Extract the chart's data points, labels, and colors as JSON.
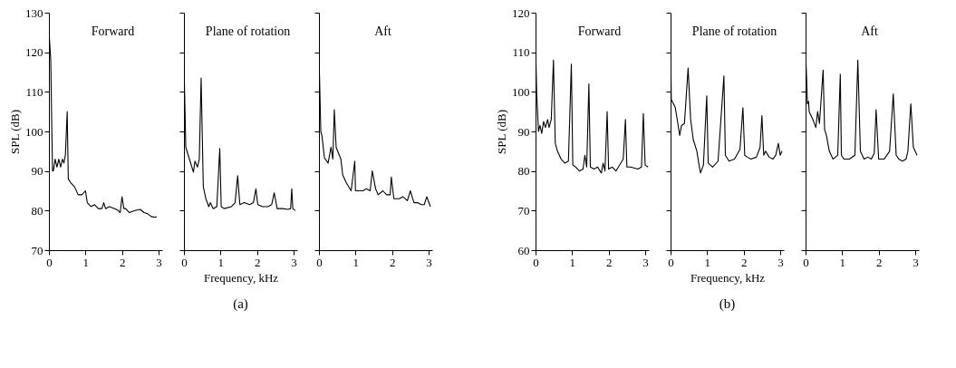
{
  "chart_data": [
    {
      "type": "line",
      "title": "Forward",
      "ylabel": "SPL (dB)",
      "xlim": [
        0,
        3.1
      ],
      "ylim": [
        70,
        130
      ],
      "xticks": [
        0,
        1,
        2,
        3
      ],
      "yticks": [
        70,
        80,
        90,
        100,
        110,
        120,
        130
      ],
      "x": [
        0,
        0.01,
        0.05,
        0.08,
        0.1,
        0.12,
        0.17,
        0.22,
        0.27,
        0.32,
        0.37,
        0.41,
        0.45,
        0.5,
        0.53,
        0.6,
        0.7,
        0.8,
        0.9,
        1.0,
        1.05,
        1.15,
        1.25,
        1.35,
        1.45,
        1.5,
        1.55,
        1.65,
        1.8,
        1.9,
        1.95,
        2.0,
        2.05,
        2.1,
        2.2,
        2.35,
        2.5,
        2.6,
        2.7,
        2.8,
        2.9,
        2.95
      ],
      "series": [
        {
          "color": "#000000",
          "values": [
            90,
            124,
            118,
            100,
            90,
            90,
            93,
            91,
            93,
            91,
            93,
            92,
            94,
            105,
            88,
            87,
            86,
            84,
            84,
            85,
            82,
            81,
            81.5,
            80.5,
            80.5,
            82,
            80.5,
            81,
            80.5,
            80,
            79.5,
            83.5,
            80.5,
            80.5,
            79.5,
            80,
            80.3,
            79.5,
            79.2,
            78.5,
            78.3,
            78.5
          ]
        }
      ]
    },
    {
      "type": "line",
      "title": "Plane of rotation",
      "xlabel": "Frequency, kHz",
      "annotations": [
        "(a)"
      ],
      "tick_labels": "x",
      "xlim": [
        0,
        3.1
      ],
      "ylim": [
        70,
        130
      ],
      "xticks": [
        0,
        1,
        2,
        3
      ],
      "yticks": [
        70,
        80,
        90,
        100,
        110,
        120,
        130
      ],
      "x": [
        0,
        0.05,
        0.26,
        0.3,
        0.37,
        0.42,
        0.47,
        0.53,
        0.6,
        0.68,
        0.72,
        0.8,
        0.9,
        0.98,
        1.02,
        1.1,
        1.3,
        1.4,
        1.47,
        1.53,
        1.65,
        1.8,
        1.9,
        1.97,
        2.02,
        2.15,
        2.3,
        2.4,
        2.47,
        2.55,
        2.7,
        2.85,
        2.92,
        2.95,
        2.98,
        3.05
      ],
      "series": [
        {
          "color": "#000000",
          "values": [
            117.7,
            96,
            89.7,
            92.5,
            91,
            93,
            113.5,
            86,
            83,
            81,
            82,
            80.5,
            81,
            95.7,
            81,
            80.5,
            81,
            82,
            88.8,
            81.5,
            82,
            81.5,
            82,
            85.5,
            81.5,
            81,
            81,
            81.5,
            84.5,
            80.5,
            80.5,
            80.3,
            80.5,
            85.5,
            80.5,
            80
          ]
        }
      ]
    },
    {
      "type": "line",
      "title": "Aft",
      "tick_labels": "x",
      "xlim": [
        0,
        3.1
      ],
      "ylim": [
        70,
        130
      ],
      "xticks": [
        0,
        1,
        2,
        3
      ],
      "yticks": [
        70,
        80,
        90,
        100,
        110,
        120,
        130
      ],
      "x": [
        0,
        0.05,
        0.08,
        0.15,
        0.25,
        0.33,
        0.38,
        0.42,
        0.47,
        0.6,
        0.65,
        0.75,
        0.88,
        0.98,
        1.0,
        1.2,
        1.3,
        1.4,
        1.46,
        1.55,
        1.62,
        1.75,
        1.85,
        1.95,
        1.98,
        2.05,
        2.2,
        2.3,
        2.42,
        2.5,
        2.6,
        2.7,
        2.8,
        2.88,
        2.95,
        3.05
      ],
      "series": [
        {
          "color": "#000000",
          "values": [
            120,
            100,
            99,
            93.3,
            92,
            96,
            93,
            105.5,
            96,
            93,
            89,
            87,
            85,
            92.5,
            85,
            85,
            85.5,
            85,
            90,
            85.5,
            84,
            85,
            84,
            84,
            88.5,
            83,
            83,
            83.5,
            82.5,
            85,
            82,
            82,
            81.5,
            81.5,
            83.5,
            81
          ]
        }
      ]
    },
    {
      "type": "line",
      "title": "Forward",
      "ylabel": "SPL (dB)",
      "xlim": [
        0,
        3.1
      ],
      "ylim": [
        60,
        120
      ],
      "xticks": [
        0,
        1,
        2,
        3
      ],
      "yticks": [
        60,
        70,
        80,
        90,
        100,
        110,
        120
      ],
      "x": [
        0,
        0.03,
        0.08,
        0.12,
        0.17,
        0.22,
        0.27,
        0.33,
        0.37,
        0.43,
        0.49,
        0.54,
        0.6,
        0.7,
        0.8,
        0.9,
        0.98,
        1.02,
        1.1,
        1.2,
        1.3,
        1.35,
        1.4,
        1.46,
        1.5,
        1.6,
        1.7,
        1.8,
        1.85,
        1.9,
        1.96,
        2.0,
        2.1,
        2.2,
        2.4,
        2.46,
        2.5,
        2.6,
        2.8,
        2.9,
        2.95,
        3.0,
        3.08
      ],
      "series": [
        {
          "color": "#000000",
          "values": [
            112,
            100,
            90,
            91.5,
            89.5,
            92.5,
            91,
            93,
            91,
            93,
            108,
            87,
            85,
            83,
            82,
            82.5,
            107,
            81.5,
            81,
            80,
            80.5,
            84,
            81,
            102,
            81,
            80.5,
            81,
            79.5,
            82,
            80,
            95,
            80.5,
            81,
            80,
            83,
            93,
            81,
            81,
            80.5,
            81,
            94.5,
            81.5,
            81
          ]
        }
      ]
    },
    {
      "type": "line",
      "title": "Plane of rotation",
      "xlabel": "Frequency, kHz",
      "annotations": [
        "(b)"
      ],
      "tick_labels": "x",
      "xlim": [
        0,
        3.1
      ],
      "ylim": [
        60,
        120
      ],
      "xticks": [
        0,
        1,
        2,
        3
      ],
      "yticks": [
        60,
        70,
        80,
        90,
        100,
        110,
        120
      ],
      "x": [
        0,
        0.02,
        0.08,
        0.13,
        0.2,
        0.25,
        0.3,
        0.38,
        0.48,
        0.55,
        0.62,
        0.72,
        0.78,
        0.82,
        0.9,
        0.99,
        1.03,
        1.15,
        1.3,
        1.46,
        1.5,
        1.6,
        1.75,
        1.9,
        1.98,
        2.03,
        2.1,
        2.2,
        2.35,
        2.45,
        2.5,
        2.55,
        2.6,
        2.7,
        2.8,
        2.88,
        2.95,
        3.0,
        3.05
      ],
      "series": [
        {
          "color": "#000000",
          "values": [
            114,
            98,
            97,
            96,
            92,
            89,
            91.5,
            92,
            106,
            93,
            88,
            85,
            81.5,
            79.5,
            81.5,
            99,
            82,
            81,
            82.5,
            104,
            84,
            82.5,
            83,
            85.5,
            96,
            84,
            83.5,
            83,
            83.5,
            86,
            94,
            84,
            85,
            83.5,
            83,
            84,
            87,
            84,
            85
          ]
        }
      ]
    },
    {
      "type": "line",
      "title": "Aft",
      "tick_labels": "x",
      "xlim": [
        0,
        3.1
      ],
      "ylim": [
        60,
        120
      ],
      "xticks": [
        0,
        1,
        2,
        3
      ],
      "yticks": [
        60,
        70,
        80,
        90,
        100,
        110,
        120
      ],
      "x": [
        0,
        0.03,
        0.05,
        0.08,
        0.1,
        0.2,
        0.28,
        0.33,
        0.38,
        0.48,
        0.52,
        0.57,
        0.65,
        0.75,
        0.88,
        0.95,
        0.98,
        1.05,
        1.2,
        1.35,
        1.43,
        1.5,
        1.6,
        1.7,
        1.8,
        1.88,
        1.93,
        2.0,
        2.15,
        2.3,
        2.4,
        2.48,
        2.55,
        2.65,
        2.75,
        2.8,
        2.88,
        2.95,
        3.05
      ],
      "series": [
        {
          "color": "#000000",
          "values": [
            110,
            103,
            97,
            97.6,
            95,
            93,
            91,
            95,
            92,
            105.5,
            90.5,
            89,
            85,
            83,
            84,
            104.5,
            84,
            83,
            83,
            84,
            108,
            85,
            83,
            83.5,
            83,
            84.5,
            95.5,
            83,
            83,
            85,
            99.5,
            84,
            83,
            82.5,
            83,
            85,
            97,
            86,
            84
          ]
        }
      ]
    }
  ]
}
